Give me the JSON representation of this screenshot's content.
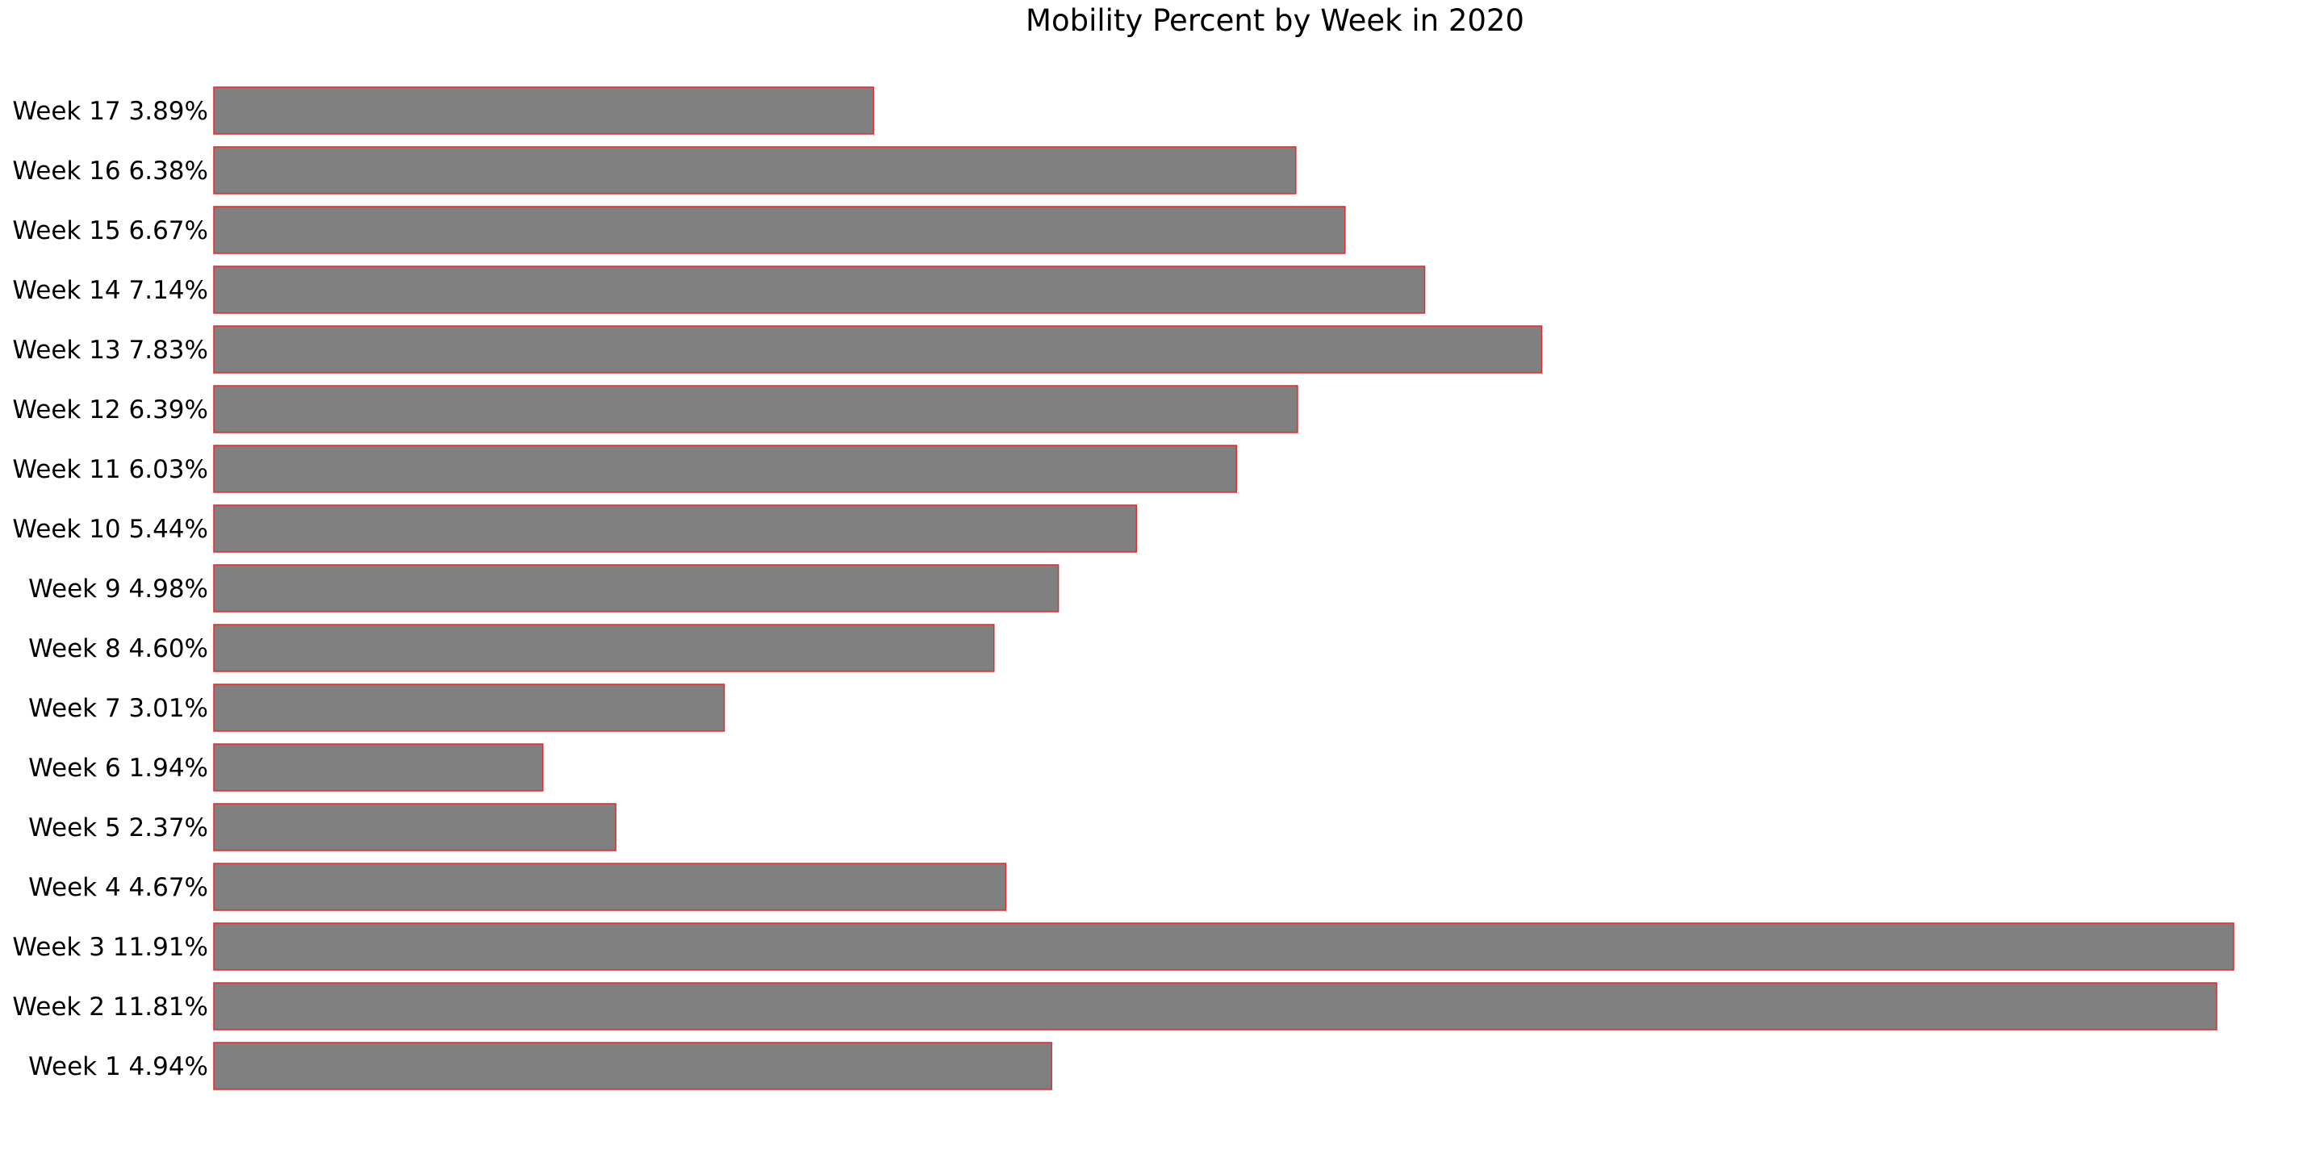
{
  "chart_data": {
    "type": "bar",
    "orientation": "horizontal",
    "title": "Mobility Percent by Week in 2020",
    "xlabel": "",
    "ylabel": "",
    "categories": [
      "Week 1  4.94%",
      "Week 2  11.81%",
      "Week 3  11.91%",
      "Week 4  4.67%",
      "Week 5  2.37%",
      "Week 6  1.94%",
      "Week 7  3.01%",
      "Week 8  4.60%",
      "Week 9  4.98%",
      "Week 10  5.44%",
      "Week 11  6.03%",
      "Week 12  6.39%",
      "Week 13  7.83%",
      "Week 14  7.14%",
      "Week 15  6.67%",
      "Week 16  6.38%",
      "Week 17  3.89%"
    ],
    "values": [
      4.94,
      11.81,
      11.91,
      4.67,
      2.37,
      1.94,
      3.01,
      4.6,
      4.98,
      5.44,
      6.03,
      6.39,
      7.83,
      7.14,
      6.67,
      6.38,
      3.89
    ],
    "xlim": [
      0,
      11.91
    ],
    "grid": false,
    "legend": "none",
    "bar_color": "#808080",
    "bar_edge_color": "#e8282b"
  }
}
